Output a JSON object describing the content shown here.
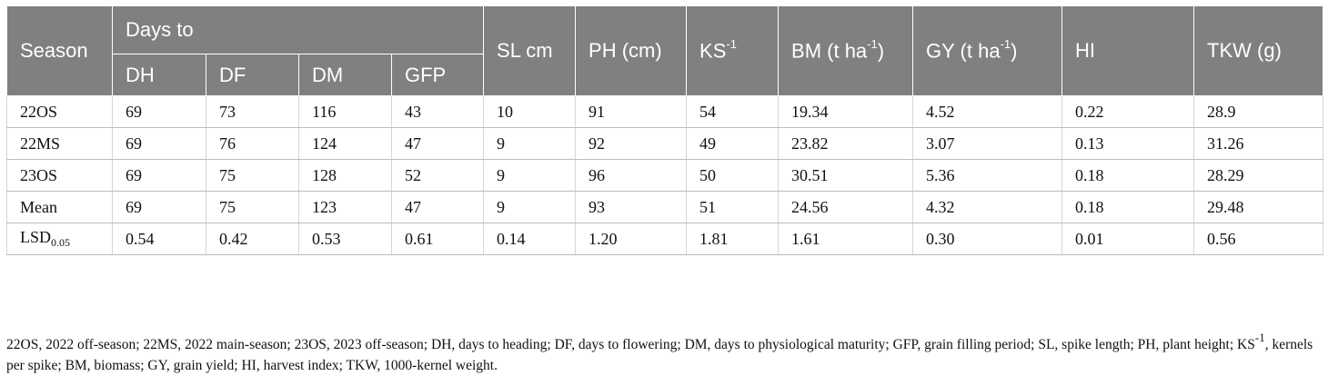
{
  "header": {
    "season": "Season",
    "days_to": "Days to",
    "dh": "DH",
    "df": "DF",
    "dm": "DM",
    "gfp": "GFP",
    "sl": "SL cm",
    "ph": "PH (cm)",
    "ks_base": "KS",
    "ks_sup": "-1",
    "bm_base": "BM (t ha",
    "bm_sup": "-1",
    "bm_close": ")",
    "gy_base": "GY (t ha",
    "gy_sup": "-1",
    "gy_close": ")",
    "hi": "HI",
    "tkw": "TKW (g)"
  },
  "rows": [
    {
      "season": "22OS",
      "dh": "69",
      "df": "73",
      "dm": "116",
      "gfp": "43",
      "sl": "10",
      "ph": "91",
      "ks": "54",
      "bm": "19.34",
      "gy": "4.52",
      "hi": "0.22",
      "tkw": "28.9"
    },
    {
      "season": "22MS",
      "dh": "69",
      "df": "76",
      "dm": "124",
      "gfp": "47",
      "sl": "9",
      "ph": "92",
      "ks": "49",
      "bm": "23.82",
      "gy": "3.07",
      "hi": "0.13",
      "tkw": "31.26"
    },
    {
      "season": "23OS",
      "dh": "69",
      "df": "75",
      "dm": "128",
      "gfp": "52",
      "sl": "9",
      "ph": "96",
      "ks": "50",
      "bm": "30.51",
      "gy": "5.36",
      "hi": "0.18",
      "tkw": "28.29"
    },
    {
      "season": "Mean",
      "dh": "69",
      "df": "75",
      "dm": "123",
      "gfp": "47",
      "sl": "9",
      "ph": "93",
      "ks": "51",
      "bm": "24.56",
      "gy": "4.32",
      "hi": "0.18",
      "tkw": "29.48"
    }
  ],
  "lsd": {
    "label_base": "LSD",
    "label_sub": "0.05",
    "dh": "0.54",
    "df": "0.42",
    "dm": "0.53",
    "gfp": "0.61",
    "sl": "0.14",
    "ph": "1.20",
    "ks": "1.81",
    "bm": "1.61",
    "gy": "0.30",
    "hi": "0.01",
    "tkw": "0.56"
  },
  "footnote": {
    "part1": "22OS, 2022 off-season; 22MS, 2022 main-season; 23OS, 2023 off-season; DH, days to heading; DF, days to flowering; DM, days to physiological maturity; GFP, grain filling period; SL, spike length; PH, plant height; KS",
    "sup": "-1",
    "part2": ", kernels per spike; BM, biomass; GY, grain yield; HI, harvest index; TKW, 1000-kernel weight."
  }
}
